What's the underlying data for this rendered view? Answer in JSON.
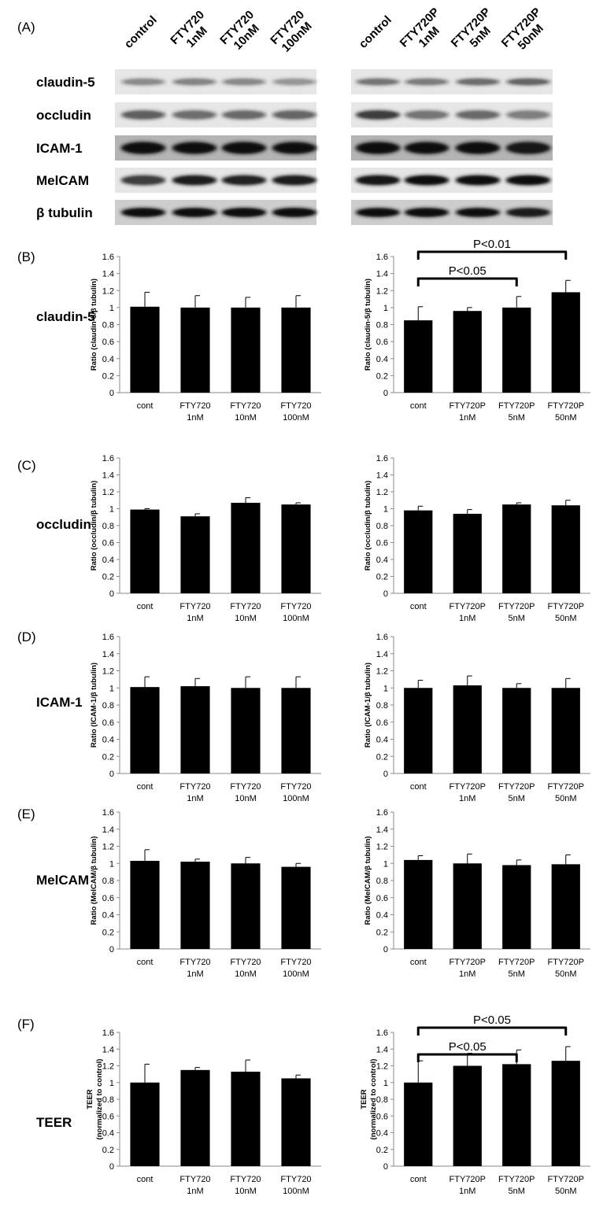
{
  "panel_letters": [
    "(A)",
    "(B)",
    "(C)",
    "(D)",
    "(E)",
    "(F)"
  ],
  "blot": {
    "left_lanes": [
      "control",
      "FTY720\n1nM",
      "FTY720\n10nM",
      "FTY720\n100nM"
    ],
    "right_lanes": [
      "control",
      "FTY720P\n1nM",
      "FTY720P\n5nM",
      "FTY720P\n50nM"
    ],
    "rows": [
      "claudin-5",
      "occludin",
      "ICAM-1",
      "MelCAM",
      "β tubulin"
    ]
  },
  "chart_data": [
    {
      "type": "bar",
      "panel": "(B)",
      "row_label": "claudin-5",
      "side": "left",
      "categories": [
        "cont",
        "FTY720\n1nM",
        "FTY720\n10nM",
        "FTY720\n100nM"
      ],
      "values": [
        1.01,
        1.0,
        1.0,
        1.0
      ],
      "errors": [
        0.17,
        0.14,
        0.12,
        0.14
      ],
      "ylabel": "Ratio (claudin-5/β tubulin)",
      "ylim": [
        0,
        1.6
      ],
      "yticks": [
        "0",
        "0.2",
        "0.4",
        "0.6",
        "0.8",
        "1",
        "1.2",
        "1.4",
        "1.6"
      ],
      "significance": []
    },
    {
      "type": "bar",
      "panel": "(B)",
      "row_label": "claudin-5",
      "side": "right",
      "categories": [
        "cont",
        "FTY720P\n1nM",
        "FTY720P\n5nM",
        "FTY720P\n50nM"
      ],
      "values": [
        0.85,
        0.96,
        1.0,
        1.18
      ],
      "errors": [
        0.16,
        0.04,
        0.13,
        0.14
      ],
      "ylabel": "Ratio (claudin-5/β tubulin)",
      "ylim": [
        0,
        1.6
      ],
      "yticks": [
        "0",
        "0.2",
        "0.4",
        "0.6",
        "0.8",
        "1",
        "1.2",
        "1.4",
        "1.6"
      ],
      "significance": [
        {
          "from": 0,
          "to": 2,
          "label": "P<0.05"
        },
        {
          "from": 0,
          "to": 3,
          "label": "P<0.01"
        }
      ]
    },
    {
      "type": "bar",
      "panel": "(C)",
      "row_label": "occludin",
      "side": "left",
      "categories": [
        "cont",
        "FTY720\n1nM",
        "FTY720\n10nM",
        "FTY720\n100nM"
      ],
      "values": [
        0.99,
        0.91,
        1.07,
        1.05
      ],
      "errors": [
        0.01,
        0.03,
        0.06,
        0.02
      ],
      "ylabel": "Ratio (occludin/β tubulin)",
      "ylim": [
        0,
        1.6
      ],
      "yticks": [
        "0",
        "0.2",
        "0.4",
        "0.6",
        "0.8",
        "1",
        "1.2",
        "1.4",
        "1.6"
      ],
      "significance": []
    },
    {
      "type": "bar",
      "panel": "(C)",
      "row_label": "occludin",
      "side": "right",
      "categories": [
        "cont",
        "FTY720P\n1nM",
        "FTY720P\n5nM",
        "FTY720P\n50nM"
      ],
      "values": [
        0.98,
        0.94,
        1.05,
        1.04
      ],
      "errors": [
        0.05,
        0.05,
        0.02,
        0.06
      ],
      "ylabel": "Ratio (occludin/β tubulin)",
      "ylim": [
        0,
        1.6
      ],
      "yticks": [
        "0",
        "0.2",
        "0.4",
        "0.6",
        "0.8",
        "1",
        "1.2",
        "1.4",
        "1.6"
      ],
      "significance": []
    },
    {
      "type": "bar",
      "panel": "(D)",
      "row_label": "ICAM-1",
      "side": "left",
      "categories": [
        "cont",
        "FTY720\n1nM",
        "FTY720\n10nM",
        "FTY720\n100nM"
      ],
      "values": [
        1.01,
        1.02,
        1.0,
        1.0
      ],
      "errors": [
        0.12,
        0.09,
        0.13,
        0.13
      ],
      "ylabel": "Ratio (ICAM-1/β tubulin)",
      "ylim": [
        0,
        1.6
      ],
      "yticks": [
        "0",
        "0.2",
        "0.4",
        "0.6",
        "0.8",
        "1",
        "1.2",
        "1.4",
        "1.6"
      ],
      "significance": []
    },
    {
      "type": "bar",
      "panel": "(D)",
      "row_label": "ICAM-1",
      "side": "right",
      "categories": [
        "cont",
        "FTY720P\n1nM",
        "FTY720P\n5nM",
        "FTY720P\n50nM"
      ],
      "values": [
        1.0,
        1.03,
        1.0,
        1.0
      ],
      "errors": [
        0.09,
        0.11,
        0.05,
        0.11
      ],
      "ylabel": "Ratio (ICAM-1/β tubulin)",
      "ylim": [
        0,
        1.6
      ],
      "yticks": [
        "0",
        "0.2",
        "0.4",
        "0.6",
        "0.8",
        "1",
        "1.2",
        "1.4",
        "1.6"
      ],
      "significance": []
    },
    {
      "type": "bar",
      "panel": "(E)",
      "row_label": "MelCAM",
      "side": "left",
      "categories": [
        "cont",
        "FTY720\n1nM",
        "FTY720\n10nM",
        "FTY720\n100nM"
      ],
      "values": [
        1.03,
        1.02,
        1.0,
        0.96
      ],
      "errors": [
        0.13,
        0.03,
        0.07,
        0.04
      ],
      "ylabel": "Ratio (MelCAM/β tubulin)",
      "ylim": [
        0,
        1.6
      ],
      "yticks": [
        "0",
        "0.2",
        "0.4",
        "0.6",
        "0.8",
        "1",
        "1.2",
        "1.4",
        "1.6"
      ],
      "significance": []
    },
    {
      "type": "bar",
      "panel": "(E)",
      "row_label": "MelCAM",
      "side": "right",
      "categories": [
        "cont",
        "FTY720P\n1nM",
        "FTY720P\n5nM",
        "FTY720P\n50nM"
      ],
      "values": [
        1.04,
        1.0,
        0.98,
        0.99
      ],
      "errors": [
        0.05,
        0.11,
        0.06,
        0.11
      ],
      "ylabel": "Ratio (MelCAM/β tubulin)",
      "ylim": [
        0,
        1.6
      ],
      "yticks": [
        "0",
        "0.2",
        "0.4",
        "0.6",
        "0.8",
        "1",
        "1.2",
        "1.4",
        "1.6"
      ],
      "significance": []
    },
    {
      "type": "bar",
      "panel": "(F)",
      "row_label": "TEER",
      "side": "left",
      "categories": [
        "cont",
        "FTY720\n1nM",
        "FTY720\n10nM",
        "FTY720\n100nM"
      ],
      "values": [
        1.0,
        1.15,
        1.13,
        1.05
      ],
      "errors": [
        0.22,
        0.03,
        0.14,
        0.04
      ],
      "ylabel": "TEER\n(normalized to control)",
      "ylim": [
        0,
        1.6
      ],
      "yticks": [
        "0",
        "0.2",
        "0.4",
        "0.6",
        "0.8",
        "1",
        "1.2",
        "1.4",
        "1.6"
      ],
      "significance": []
    },
    {
      "type": "bar",
      "panel": "(F)",
      "row_label": "TEER",
      "side": "right",
      "categories": [
        "cont",
        "FTY720P\n1nM",
        "FTY720P\n5nM",
        "FTY720P\n50nM"
      ],
      "values": [
        1.0,
        1.2,
        1.22,
        1.26
      ],
      "errors": [
        0.26,
        0.15,
        0.17,
        0.17
      ],
      "ylabel": "TEER\n(normalized to control)",
      "ylim": [
        0,
        1.6
      ],
      "yticks": [
        "0",
        "0.2",
        "0.4",
        "0.6",
        "0.8",
        "1",
        "1.2",
        "1.4",
        "1.6"
      ],
      "significance": [
        {
          "from": 0,
          "to": 2,
          "label": "P<0.05"
        },
        {
          "from": 0,
          "to": 3,
          "label": "P<0.05"
        }
      ]
    }
  ]
}
